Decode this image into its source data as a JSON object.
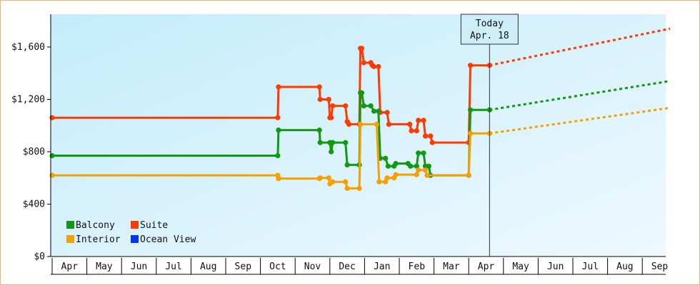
{
  "chart_data": {
    "type": "line",
    "title": "",
    "xlabel": "",
    "ylabel": "",
    "ylim": [
      0,
      1850
    ],
    "yticks": [
      0,
      400,
      800,
      1200,
      1600
    ],
    "ytick_labels": [
      "$0",
      "$400",
      "$800",
      "$1,200",
      "$1,600"
    ],
    "x_months": [
      "Apr",
      "May",
      "Jun",
      "Jul",
      "Aug",
      "Sep",
      "Oct",
      "Nov",
      "Dec",
      "Jan",
      "Feb",
      "Mar",
      "Apr",
      "May",
      "Jun",
      "Jul",
      "Aug",
      "Sep"
    ],
    "x_unit": "months since start of first Apr",
    "today": {
      "line1": "Today",
      "line2": "Apr. 18",
      "x": 12.6
    },
    "grid": false,
    "background": "light-blue gradient",
    "legend_position": "bottom-left",
    "legend": [
      {
        "name": "Balcony",
        "color": "#119911"
      },
      {
        "name": "Suite",
        "color": "#ff3a00"
      },
      {
        "name": "Interior",
        "color": "#f5a000"
      },
      {
        "name": "Ocean View",
        "color": "#0033ff"
      }
    ],
    "series": [
      {
        "name": "Suite",
        "color": "#ff3a00",
        "points": [
          [
            0,
            1060
          ],
          [
            6.5,
            1060
          ],
          [
            6.52,
            1295
          ],
          [
            7.7,
            1295
          ],
          [
            7.72,
            1200
          ],
          [
            7.97,
            1200
          ],
          [
            8.0,
            1060
          ],
          [
            8.04,
            1060
          ],
          [
            8.08,
            1150
          ],
          [
            8.45,
            1150
          ],
          [
            8.5,
            1030
          ],
          [
            8.55,
            1010
          ],
          [
            8.85,
            1010
          ],
          [
            8.88,
            1590
          ],
          [
            8.92,
            1590
          ],
          [
            8.98,
            1480
          ],
          [
            9.18,
            1480
          ],
          [
            9.22,
            1460
          ],
          [
            9.27,
            1450
          ],
          [
            9.4,
            1450
          ],
          [
            9.45,
            1100
          ],
          [
            9.65,
            1100
          ],
          [
            9.7,
            1010
          ],
          [
            10.3,
            1010
          ],
          [
            10.35,
            960
          ],
          [
            10.5,
            960
          ],
          [
            10.55,
            1040
          ],
          [
            10.7,
            1040
          ],
          [
            10.75,
            920
          ],
          [
            10.9,
            920
          ],
          [
            10.95,
            870
          ],
          [
            12.0,
            870
          ],
          [
            12.05,
            1460
          ],
          [
            12.6,
            1460
          ]
        ],
        "projection": [
          [
            12.6,
            1460
          ],
          [
            17.8,
            1740
          ]
        ]
      },
      {
        "name": "Balcony",
        "color": "#119911",
        "points": [
          [
            0,
            770
          ],
          [
            6.5,
            770
          ],
          [
            6.52,
            965
          ],
          [
            7.7,
            965
          ],
          [
            7.72,
            870
          ],
          [
            8.0,
            870
          ],
          [
            8.04,
            800
          ],
          [
            8.08,
            870
          ],
          [
            8.45,
            870
          ],
          [
            8.5,
            700
          ],
          [
            8.85,
            700
          ],
          [
            8.88,
            1250
          ],
          [
            8.92,
            1250
          ],
          [
            8.98,
            1150
          ],
          [
            9.18,
            1150
          ],
          [
            9.27,
            1110
          ],
          [
            9.4,
            1110
          ],
          [
            9.45,
            750
          ],
          [
            9.6,
            750
          ],
          [
            9.68,
            690
          ],
          [
            9.85,
            690
          ],
          [
            9.9,
            710
          ],
          [
            10.25,
            710
          ],
          [
            10.32,
            690
          ],
          [
            10.5,
            690
          ],
          [
            10.55,
            790
          ],
          [
            10.7,
            790
          ],
          [
            10.75,
            690
          ],
          [
            10.85,
            690
          ],
          [
            10.9,
            620
          ],
          [
            12.0,
            620
          ],
          [
            12.05,
            1120
          ],
          [
            12.6,
            1120
          ]
        ],
        "projection": [
          [
            12.6,
            1120
          ],
          [
            17.8,
            1340
          ]
        ]
      },
      {
        "name": "Interior",
        "color": "#f5a000",
        "points": [
          [
            0,
            620
          ],
          [
            6.5,
            620
          ],
          [
            6.52,
            595
          ],
          [
            7.7,
            595
          ],
          [
            7.72,
            600
          ],
          [
            7.97,
            600
          ],
          [
            8.0,
            555
          ],
          [
            8.08,
            570
          ],
          [
            8.45,
            570
          ],
          [
            8.5,
            520
          ],
          [
            8.85,
            520
          ],
          [
            8.88,
            1010
          ],
          [
            9.35,
            1010
          ],
          [
            9.42,
            570
          ],
          [
            9.6,
            570
          ],
          [
            9.65,
            600
          ],
          [
            9.85,
            600
          ],
          [
            9.9,
            625
          ],
          [
            10.5,
            625
          ],
          [
            10.55,
            660
          ],
          [
            10.75,
            660
          ],
          [
            10.8,
            620
          ],
          [
            12.0,
            620
          ],
          [
            12.05,
            940
          ],
          [
            12.6,
            940
          ]
        ],
        "projection": [
          [
            12.6,
            940
          ],
          [
            17.8,
            1135
          ]
        ]
      }
    ]
  }
}
